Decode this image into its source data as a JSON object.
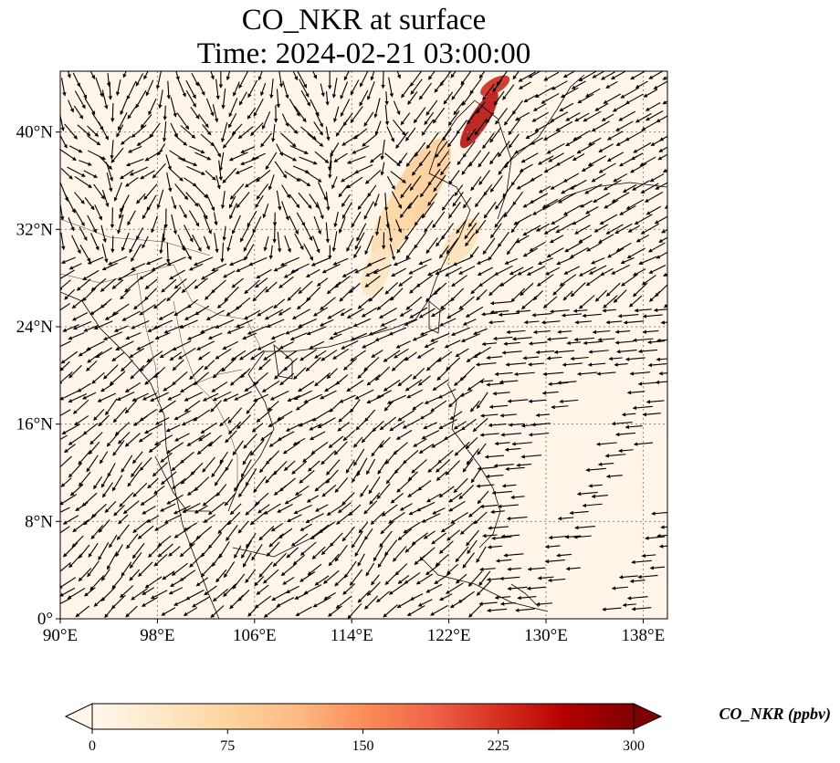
{
  "title": {
    "line1": "CO_NKR at surface",
    "line2": "Time: 2024-02-21 03:00:00"
  },
  "map": {
    "projection": "PlateCarree",
    "lon_range": [
      90,
      140
    ],
    "lat_range": [
      0,
      45
    ],
    "lon_ticks": [
      {
        "value": 90,
        "label": "90°E"
      },
      {
        "value": 98,
        "label": "98°E"
      },
      {
        "value": 106,
        "label": "106°E"
      },
      {
        "value": 114,
        "label": "114°E"
      },
      {
        "value": 122,
        "label": "122°E"
      },
      {
        "value": 130,
        "label": "130°E"
      },
      {
        "value": 138,
        "label": "138°E"
      }
    ],
    "lat_ticks": [
      {
        "value": 0,
        "label": "0°"
      },
      {
        "value": 8,
        "label": "8°N"
      },
      {
        "value": 16,
        "label": "16°N"
      },
      {
        "value": 24,
        "label": "24°N"
      },
      {
        "value": 32,
        "label": "32°N"
      },
      {
        "value": 40,
        "label": "40°N"
      }
    ],
    "gridlines": "dotted",
    "background_color": "#fff5e9",
    "overlay": "wind vectors (black arrows)"
  },
  "colorbar": {
    "label": "CO_NKR (ppbv)",
    "colormap": "OrRd",
    "range": [
      0,
      300
    ],
    "ticks": [
      {
        "value": 0,
        "label": "0"
      },
      {
        "value": 75,
        "label": "75"
      },
      {
        "value": 150,
        "label": "150"
      },
      {
        "value": 225,
        "label": "225"
      },
      {
        "value": 300,
        "label": "300"
      }
    ],
    "extend": "both",
    "colors": [
      "#fff7ec",
      "#fee8c8",
      "#fdd49e",
      "#fdbb84",
      "#fc8d59",
      "#ef6548",
      "#d7301f",
      "#b30000",
      "#7f0000"
    ]
  },
  "plumes": [
    {
      "lon": 124.5,
      "lat": 41.0,
      "value": 260
    },
    {
      "lon": 125.8,
      "lat": 43.8,
      "value": 240
    },
    {
      "lon": 119.5,
      "lat": 35.5,
      "value": 85
    },
    {
      "lon": 117.5,
      "lat": 32.5,
      "value": 65
    },
    {
      "lon": 123.0,
      "lat": 31.0,
      "value": 55
    },
    {
      "lon": 116.0,
      "lat": 28.5,
      "value": 45
    }
  ]
}
